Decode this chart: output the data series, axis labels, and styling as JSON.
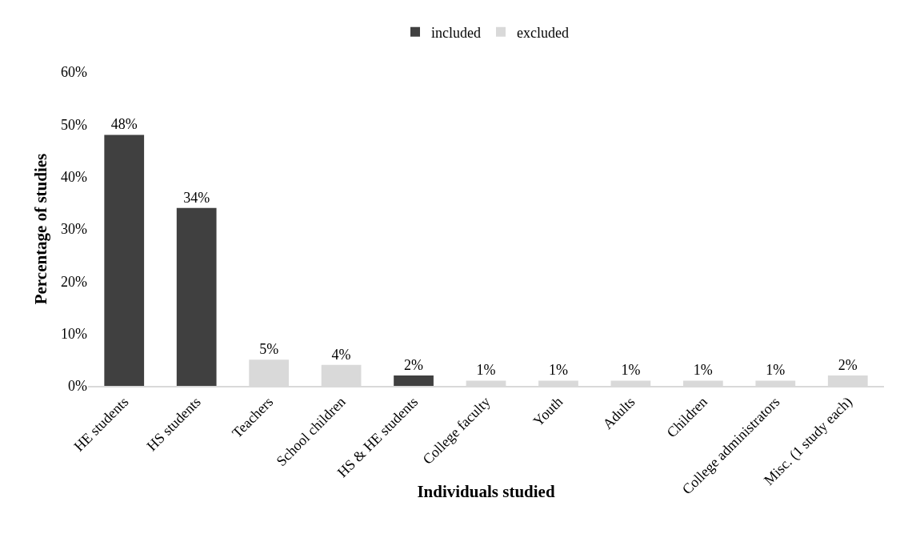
{
  "chart_data": {
    "type": "bar",
    "xlabel": "Individuals studied",
    "ylabel": "Percentage of studies",
    "categories": [
      "HE students",
      "HS students",
      "Teachers",
      "School children",
      "HS & HE students",
      "College faculty",
      "Youth",
      "Adults",
      "Children",
      "College administrators",
      "Misc. (1 study each)"
    ],
    "series": [
      {
        "name": "included",
        "color": "#404040",
        "values": [
          48,
          34,
          null,
          null,
          2,
          null,
          null,
          null,
          null,
          null,
          null
        ],
        "value_labels": [
          "48%",
          "34%",
          null,
          null,
          "2%",
          null,
          null,
          null,
          null,
          null,
          null
        ]
      },
      {
        "name": "excluded",
        "color": "#d9d9d9",
        "values": [
          null,
          null,
          5,
          4,
          null,
          1,
          1,
          1,
          1,
          1,
          2
        ],
        "value_labels": [
          null,
          null,
          "5%",
          "4%",
          null,
          "1%",
          "1%",
          "1%",
          "1%",
          "1%",
          "2%"
        ]
      }
    ],
    "ylim": [
      0,
      60
    ],
    "yticks": [
      {
        "value": 0,
        "label": "0%"
      },
      {
        "value": 10,
        "label": "10%"
      },
      {
        "value": 20,
        "label": "20%"
      },
      {
        "value": 30,
        "label": "30%"
      },
      {
        "value": 40,
        "label": "40%"
      },
      {
        "value": 50,
        "label": "50%"
      },
      {
        "value": 60,
        "label": "60%"
      }
    ],
    "grid": false,
    "legend": "top"
  }
}
